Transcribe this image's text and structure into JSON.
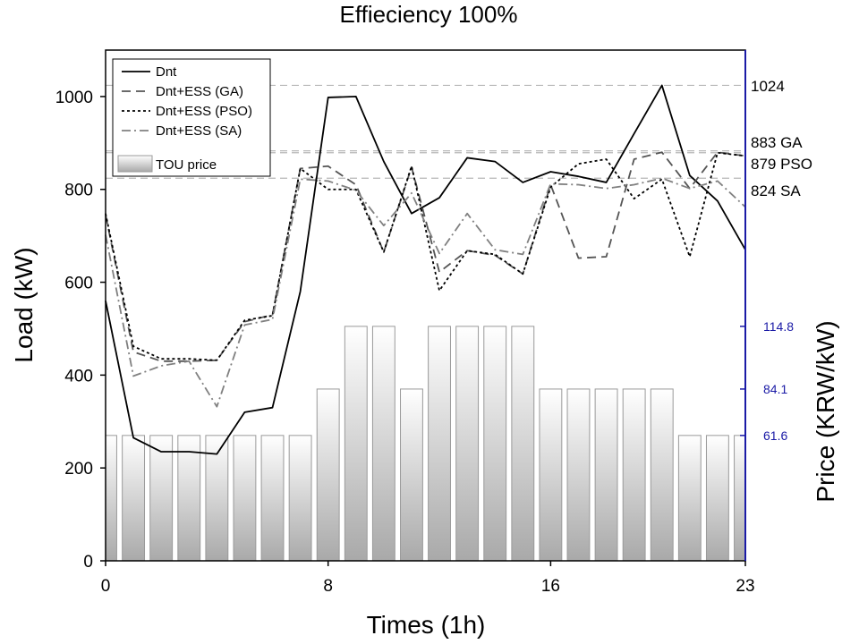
{
  "chart_data": {
    "type": "line",
    "title": "Effieciency 100%",
    "xlabel": "Times (1h)",
    "ylabel": "Load (kW)",
    "y2label": "Price (KRW/kW)",
    "xlim": [
      0,
      23
    ],
    "ylim": [
      0,
      1100
    ],
    "x_ticks": [
      0,
      8,
      16,
      23
    ],
    "y_ticks": [
      0,
      200,
      400,
      600,
      800,
      1000
    ],
    "y2_tick_values": [
      61.6,
      84.1,
      114.8
    ],
    "y2_tick_labels": [
      "61.6",
      "84.1",
      "114.8"
    ],
    "price_axis_map": {
      "price": [
        61.6,
        84.1,
        114.8
      ],
      "load_equivalent": [
        270,
        370,
        505
      ]
    },
    "grid": false,
    "legend_position": "top-left",
    "x": [
      0,
      1,
      2,
      3,
      4,
      5,
      6,
      7,
      8,
      9,
      10,
      11,
      12,
      13,
      14,
      15,
      16,
      17,
      18,
      19,
      20,
      21,
      22,
      23
    ],
    "series": [
      {
        "name": "Dnt",
        "style": "solid",
        "color": "#000000",
        "values": [
          560,
          265,
          235,
          235,
          230,
          320,
          330,
          580,
          998,
          1000,
          860,
          748,
          782,
          868,
          860,
          815,
          838,
          828,
          815,
          920,
          1024,
          830,
          775,
          670
        ]
      },
      {
        "name": "Dnt+ESS (GA)",
        "style": "dashed",
        "color": "#555555",
        "values": [
          745,
          450,
          430,
          430,
          432,
          515,
          530,
          845,
          850,
          810,
          665,
          848,
          622,
          668,
          658,
          618,
          810,
          652,
          655,
          865,
          880,
          802,
          880,
          872
        ]
      },
      {
        "name": "Dnt+ESS (PSO)",
        "style": "dotted",
        "color": "#000000",
        "values": [
          748,
          462,
          435,
          435,
          432,
          518,
          528,
          845,
          800,
          800,
          665,
          850,
          582,
          668,
          660,
          618,
          805,
          855,
          865,
          780,
          822,
          655,
          879,
          872
        ]
      },
      {
        "name": "Dnt+ESS (SA)",
        "style": "dashdot",
        "color": "#808080",
        "values": [
          702,
          398,
          420,
          430,
          332,
          508,
          520,
          822,
          818,
          798,
          722,
          792,
          662,
          748,
          670,
          660,
          812,
          810,
          802,
          810,
          824,
          802,
          818,
          762
        ]
      }
    ],
    "bars": {
      "name": "TOU price",
      "prices": [
        61.6,
        61.6,
        61.6,
        61.6,
        61.6,
        61.6,
        61.6,
        61.6,
        84.1,
        114.8,
        114.8,
        84.1,
        114.8,
        114.8,
        114.8,
        114.8,
        84.1,
        84.1,
        84.1,
        84.1,
        84.1,
        61.6,
        61.6,
        61.6
      ]
    },
    "reference_lines": [
      {
        "value": 1024,
        "label": "1024"
      },
      {
        "value": 883,
        "label": "883 GA"
      },
      {
        "value": 879,
        "label": "879 PSO"
      },
      {
        "value": 824,
        "label": "824 SA"
      }
    ]
  }
}
